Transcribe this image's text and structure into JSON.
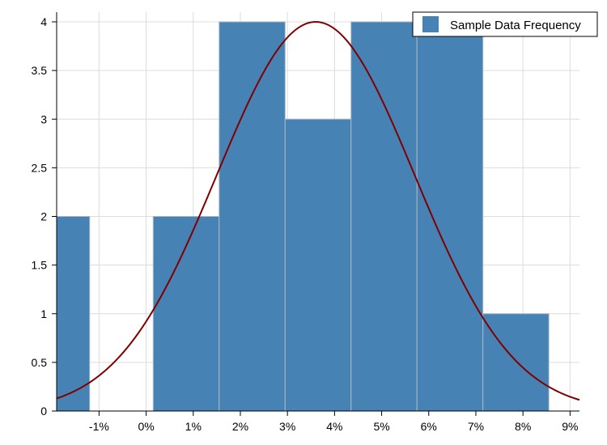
{
  "chart_data": {
    "type": "bar",
    "subtype": "histogram",
    "x_unit": "%",
    "xlim": [
      -1.9,
      9.2
    ],
    "ylim": [
      0,
      4
    ],
    "xticks": [
      -1,
      0,
      1,
      2,
      3,
      4,
      5,
      6,
      7,
      8,
      9
    ],
    "xtick_labels": [
      "-1%",
      "0%",
      "1%",
      "2%",
      "3%",
      "4%",
      "5%",
      "6%",
      "7%",
      "8%",
      "9%"
    ],
    "yticks": [
      0,
      0.5,
      1,
      1.5,
      2,
      2.5,
      3,
      3.5,
      4
    ],
    "ytick_labels": [
      "0",
      "0.5",
      "1",
      "1.5",
      "2",
      "2.5",
      "3",
      "3.5",
      "4"
    ],
    "grid": true,
    "legend_position": "top-right",
    "series": [
      {
        "name": "Sample Data Frequency",
        "color": "#4682b4",
        "bins": [
          {
            "start": -1.9,
            "end": -1.2,
            "count": 2
          },
          {
            "start": -1.2,
            "end": 0.15,
            "count": 0
          },
          {
            "start": 0.15,
            "end": 1.55,
            "count": 2
          },
          {
            "start": 1.55,
            "end": 2.95,
            "count": 4
          },
          {
            "start": 2.95,
            "end": 4.35,
            "count": 3
          },
          {
            "start": 4.35,
            "end": 5.75,
            "count": 4
          },
          {
            "start": 5.75,
            "end": 7.15,
            "count": 4
          },
          {
            "start": 7.15,
            "end": 8.55,
            "count": 1
          }
        ]
      }
    ],
    "normal_curve": {
      "color": "#800000",
      "mean": 3.6,
      "stdev": 2.1,
      "peak": 4
    }
  }
}
